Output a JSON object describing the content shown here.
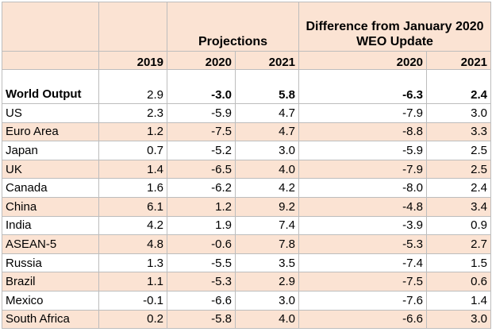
{
  "header": {
    "projections_label": "Projections",
    "difference_label": "Difference from January 2020 WEO Update",
    "years": [
      "2019",
      "2020",
      "2021",
      "2020",
      "2021"
    ]
  },
  "world": {
    "name": "World Output",
    "values": [
      "2.9",
      "-3.0",
      "5.8",
      "-6.3",
      "2.4"
    ]
  },
  "rows": [
    {
      "name": "US",
      "values": [
        "2.3",
        "-5.9",
        "4.7",
        "-7.9",
        "3.0"
      ]
    },
    {
      "name": "Euro Area",
      "values": [
        "1.2",
        "-7.5",
        "4.7",
        "-8.8",
        "3.3"
      ]
    },
    {
      "name": "Japan",
      "values": [
        "0.7",
        "-5.2",
        "3.0",
        "-5.9",
        "2.5"
      ]
    },
    {
      "name": "UK",
      "values": [
        "1.4",
        "-6.5",
        "4.0",
        "-7.9",
        "2.5"
      ]
    },
    {
      "name": "Canada",
      "values": [
        "1.6",
        "-6.2",
        "4.2",
        "-8.0",
        "2.4"
      ]
    },
    {
      "name": "China",
      "values": [
        "6.1",
        "1.2",
        "9.2",
        "-4.8",
        "3.4"
      ]
    },
    {
      "name": "India",
      "values": [
        "4.2",
        "1.9",
        "7.4",
        "-3.9",
        "0.9"
      ]
    },
    {
      "name": "ASEAN-5",
      "values": [
        "4.8",
        "-0.6",
        "7.8",
        "-5.3",
        "2.7"
      ]
    },
    {
      "name": "Russia",
      "values": [
        "1.3",
        "-5.5",
        "3.5",
        "-7.4",
        "1.5"
      ]
    },
    {
      "name": "Brazil",
      "values": [
        "1.1",
        "-5.3",
        "2.9",
        "-7.5",
        "0.6"
      ]
    },
    {
      "name": "Mexico",
      "values": [
        "-0.1",
        "-6.6",
        "3.0",
        "-7.6",
        "1.4"
      ]
    },
    {
      "name": "South Africa",
      "values": [
        "0.2",
        "-5.8",
        "4.0",
        "-6.6",
        "3.0"
      ]
    }
  ],
  "colors": {
    "header_fill": "#fbe3d3",
    "row_shade": "#fbe3d3",
    "border": "#bdbdbd"
  }
}
